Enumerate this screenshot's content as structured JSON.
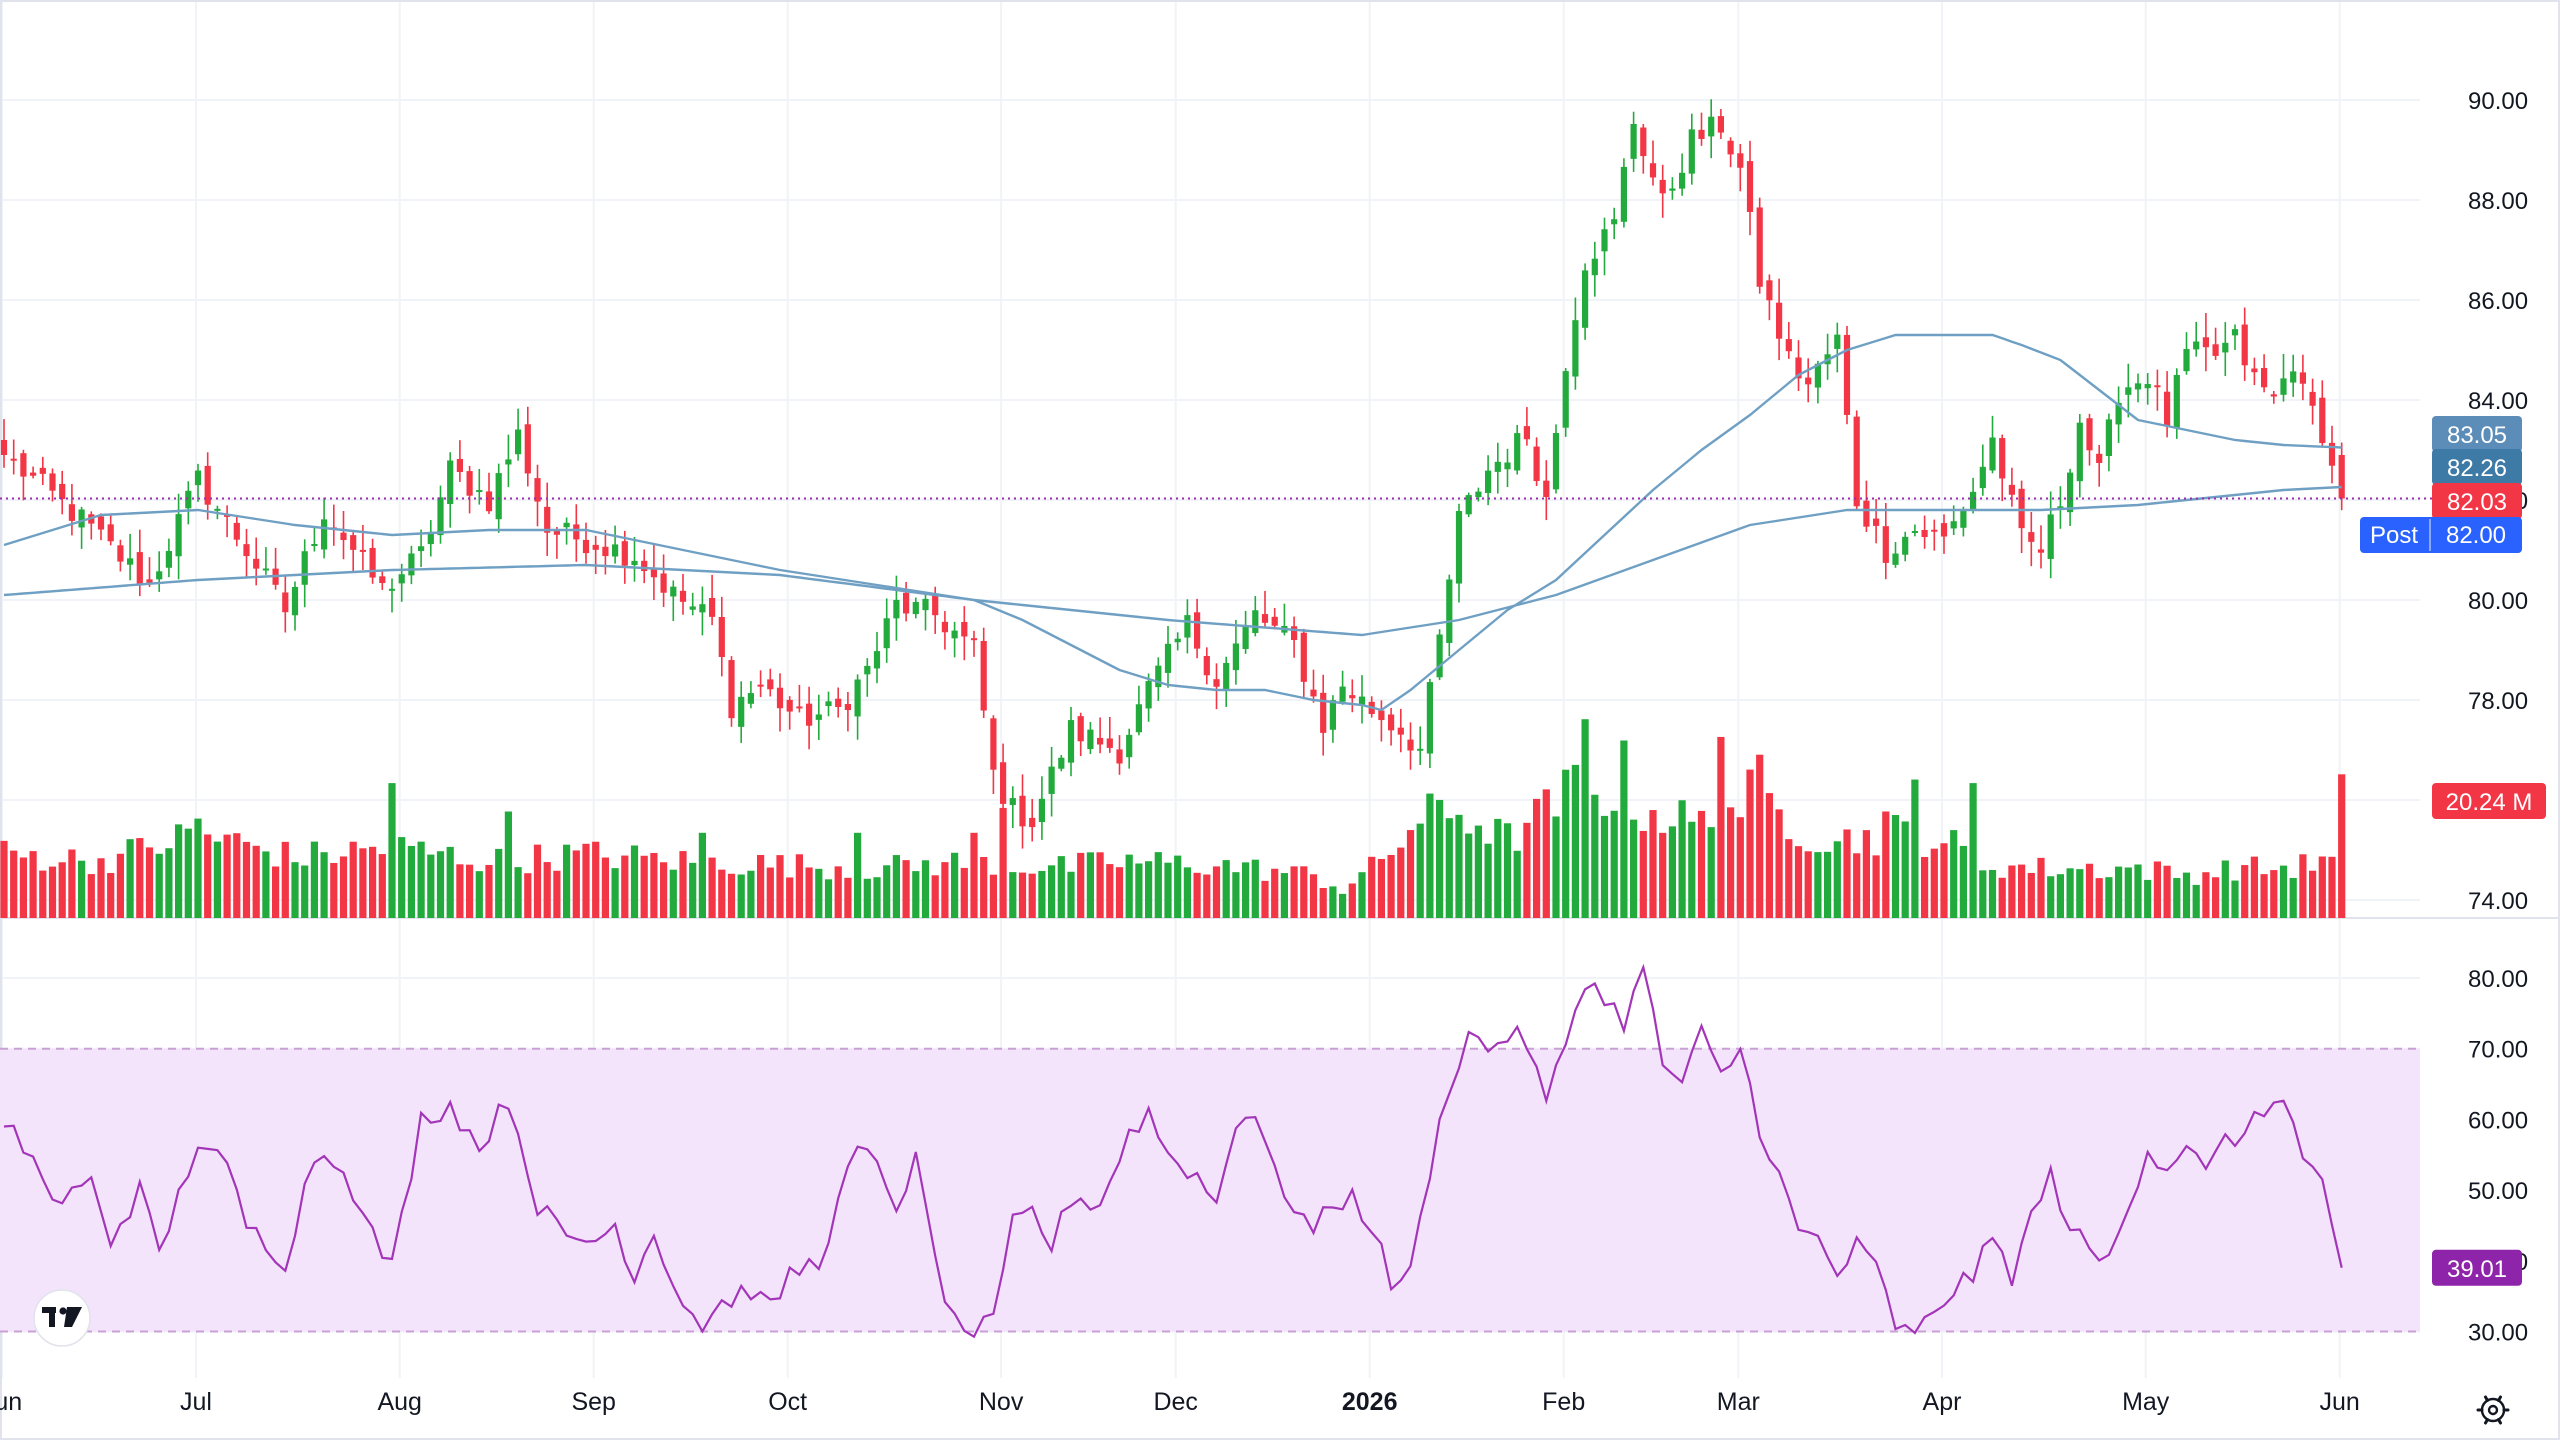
{
  "colors": {
    "up": "#22ab3c",
    "down": "#f23645",
    "ma": "#6fa0c4",
    "rsi": "#a335b8",
    "rsi_band": "#f3e4fc",
    "grid": "#f0f3f7",
    "axis_text": "#131722",
    "ref_line": "#9c27b0",
    "badge_ma50": "#5b8db8",
    "badge_ma200": "#3e7aa6",
    "badge_last": "#f23645",
    "badge_post": "#2962ff",
    "badge_rsi": "#8e24aa"
  },
  "price_axis": {
    "ticks": [
      "90.00",
      "88.00",
      "86.00",
      "84.00",
      "82.00",
      "80.00",
      "78.00",
      "76.00",
      "74.00"
    ],
    "ylim": [
      73.8,
      91.3
    ]
  },
  "rsi_axis": {
    "ticks": [
      "80.00",
      "70.00",
      "60.00",
      "50.00",
      "40.00",
      "30.00"
    ],
    "ylim": [
      27.5,
      84.5
    ],
    "band": [
      30,
      70
    ]
  },
  "time_axis": {
    "labels": [
      {
        "text": "Jun",
        "idx": 0,
        "bold": false
      },
      {
        "text": "Jul",
        "idx": 20,
        "bold": false
      },
      {
        "text": "Aug",
        "idx": 41,
        "bold": false
      },
      {
        "text": "Sep",
        "idx": 61,
        "bold": false
      },
      {
        "text": "Oct",
        "idx": 81,
        "bold": false
      },
      {
        "text": "Nov",
        "idx": 103,
        "bold": false
      },
      {
        "text": "Dec",
        "idx": 121,
        "bold": false
      },
      {
        "text": "2026",
        "idx": 141,
        "bold": true
      },
      {
        "text": "Feb",
        "idx": 161,
        "bold": false
      },
      {
        "text": "Mar",
        "idx": 179,
        "bold": false
      },
      {
        "text": "Apr",
        "idx": 200,
        "bold": false
      },
      {
        "text": "May",
        "idx": 221,
        "bold": false
      },
      {
        "text": "Jun",
        "idx": 241,
        "bold": false
      }
    ]
  },
  "badges": {
    "ma50": "83.05",
    "ma200": "82.26",
    "last": "82.03",
    "post_label": "Post",
    "post_value": "82.00",
    "volume": "20.24 M",
    "rsi": "39.01"
  },
  "chart_data": [
    {
      "type": "candlestick",
      "title": "",
      "anchors_close": [
        [
          0,
          82.9
        ],
        [
          8,
          81.6
        ],
        [
          15,
          80.3
        ],
        [
          20,
          82.4
        ],
        [
          25,
          81.0
        ],
        [
          29,
          79.8
        ],
        [
          33,
          81.8
        ],
        [
          39,
          80.2
        ],
        [
          43,
          80.9
        ],
        [
          46,
          82.6
        ],
        [
          50,
          82.0
        ],
        [
          53,
          83.3
        ],
        [
          56,
          81.4
        ],
        [
          60,
          81.2
        ],
        [
          65,
          80.9
        ],
        [
          69,
          80.1
        ],
        [
          73,
          79.6
        ],
        [
          75,
          77.9
        ],
        [
          78,
          78.3
        ],
        [
          82,
          77.6
        ],
        [
          86,
          77.8
        ],
        [
          89,
          78.6
        ],
        [
          92,
          79.9
        ],
        [
          96,
          79.7
        ],
        [
          100,
          79.0
        ],
        [
          102,
          76.5
        ],
        [
          104,
          75.8
        ],
        [
          106,
          75.6
        ],
        [
          110,
          77.4
        ],
        [
          115,
          77.0
        ],
        [
          118,
          78.2
        ],
        [
          122,
          79.5
        ],
        [
          125,
          78.4
        ],
        [
          129,
          79.7
        ],
        [
          133,
          79.1
        ],
        [
          136,
          77.5
        ],
        [
          138,
          78.3
        ],
        [
          141,
          77.8
        ],
        [
          144,
          77.4
        ],
        [
          146,
          77.0
        ],
        [
          148,
          79.2
        ],
        [
          150,
          81.6
        ],
        [
          153,
          82.6
        ],
        [
          157,
          83.3
        ],
        [
          159,
          82.0
        ],
        [
          161,
          84.8
        ],
        [
          163,
          86.8
        ],
        [
          166,
          87.5
        ],
        [
          168,
          89.6
        ],
        [
          171,
          87.9
        ],
        [
          174,
          89.2
        ],
        [
          177,
          89.5
        ],
        [
          179,
          88.6
        ],
        [
          181,
          86.4
        ],
        [
          184,
          84.8
        ],
        [
          186,
          84.3
        ],
        [
          189,
          85.2
        ],
        [
          191,
          82.0
        ],
        [
          194,
          81.0
        ],
        [
          197,
          81.4
        ],
        [
          200,
          81.2
        ],
        [
          203,
          82.2
        ],
        [
          205,
          83.2
        ],
        [
          208,
          81.2
        ],
        [
          210,
          81.0
        ],
        [
          212,
          82.0
        ],
        [
          214,
          83.6
        ],
        [
          216,
          82.5
        ],
        [
          218,
          84.2
        ],
        [
          221,
          84.5
        ],
        [
          223,
          83.6
        ],
        [
          225,
          84.9
        ],
        [
          228,
          84.9
        ],
        [
          230,
          85.2
        ],
        [
          232,
          84.4
        ],
        [
          234,
          84.0
        ],
        [
          236,
          84.8
        ],
        [
          237,
          84.1
        ],
        [
          239,
          83.4
        ],
        [
          240,
          82.6
        ],
        [
          241,
          82.03
        ]
      ],
      "anchors_volume": [
        [
          0,
          9
        ],
        [
          10,
          8
        ],
        [
          20,
          12
        ],
        [
          30,
          8.5
        ],
        [
          40,
          10
        ],
        [
          50,
          8
        ],
        [
          60,
          9
        ],
        [
          70,
          8
        ],
        [
          80,
          7.5
        ],
        [
          90,
          7
        ],
        [
          100,
          8
        ],
        [
          108,
          7
        ],
        [
          115,
          8
        ],
        [
          125,
          7.5
        ],
        [
          135,
          6
        ],
        [
          138,
          4
        ],
        [
          142,
          8
        ],
        [
          146,
          14
        ],
        [
          150,
          15
        ],
        [
          155,
          11
        ],
        [
          160,
          16
        ],
        [
          163,
          20
        ],
        [
          166,
          17
        ],
        [
          170,
          15
        ],
        [
          175,
          13
        ],
        [
          180,
          17
        ],
        [
          183,
          15
        ],
        [
          186,
          12
        ],
        [
          190,
          11
        ],
        [
          195,
          12
        ],
        [
          200,
          11
        ],
        [
          204,
          7.5
        ],
        [
          210,
          7
        ],
        [
          220,
          7
        ],
        [
          225,
          6
        ],
        [
          230,
          7
        ],
        [
          235,
          7
        ],
        [
          240,
          8
        ],
        [
          241,
          20.24
        ]
      ],
      "spikes_volume": [
        [
          20,
          14
        ],
        [
          40,
          19
        ],
        [
          52,
          15
        ],
        [
          72,
          12
        ],
        [
          88,
          12
        ],
        [
          100,
          12
        ],
        [
          103,
          15.5
        ],
        [
          163,
          28
        ],
        [
          167,
          25
        ],
        [
          177,
          25.5
        ],
        [
          181,
          23
        ],
        [
          194,
          15
        ],
        [
          197,
          19.5
        ],
        [
          203,
          19
        ],
        [
          241,
          20.24
        ]
      ],
      "ma50": [
        [
          0,
          81.1
        ],
        [
          10,
          81.7
        ],
        [
          20,
          81.8
        ],
        [
          30,
          81.5
        ],
        [
          40,
          81.3
        ],
        [
          50,
          81.4
        ],
        [
          60,
          81.4
        ],
        [
          70,
          81.0
        ],
        [
          80,
          80.6
        ],
        [
          90,
          80.3
        ],
        [
          100,
          80.0
        ],
        [
          105,
          79.6
        ],
        [
          110,
          79.1
        ],
        [
          115,
          78.6
        ],
        [
          120,
          78.3
        ],
        [
          125,
          78.2
        ],
        [
          130,
          78.2
        ],
        [
          135,
          78.0
        ],
        [
          140,
          77.9
        ],
        [
          142,
          77.8
        ],
        [
          145,
          78.2
        ],
        [
          150,
          79.0
        ],
        [
          155,
          79.8
        ],
        [
          160,
          80.4
        ],
        [
          165,
          81.3
        ],
        [
          170,
          82.2
        ],
        [
          175,
          83.0
        ],
        [
          180,
          83.7
        ],
        [
          185,
          84.5
        ],
        [
          190,
          85.0
        ],
        [
          195,
          85.3
        ],
        [
          200,
          85.3
        ],
        [
          205,
          85.3
        ],
        [
          208,
          85.1
        ],
        [
          212,
          84.8
        ],
        [
          216,
          84.2
        ],
        [
          220,
          83.6
        ],
        [
          225,
          83.4
        ],
        [
          230,
          83.2
        ],
        [
          235,
          83.1
        ],
        [
          241,
          83.05
        ]
      ],
      "ma200": [
        [
          0,
          80.1
        ],
        [
          20,
          80.4
        ],
        [
          40,
          80.6
        ],
        [
          60,
          80.7
        ],
        [
          80,
          80.5
        ],
        [
          100,
          80.0
        ],
        [
          120,
          79.6
        ],
        [
          140,
          79.3
        ],
        [
          150,
          79.6
        ],
        [
          160,
          80.1
        ],
        [
          170,
          80.8
        ],
        [
          180,
          81.5
        ],
        [
          190,
          81.8
        ],
        [
          200,
          81.8
        ],
        [
          210,
          81.8
        ],
        [
          220,
          81.9
        ],
        [
          230,
          82.1
        ],
        [
          235,
          82.2
        ],
        [
          241,
          82.26
        ]
      ]
    },
    {
      "type": "line",
      "title": "",
      "anchors": [
        [
          0,
          59
        ],
        [
          3,
          55
        ],
        [
          5,
          48
        ],
        [
          9,
          51
        ],
        [
          11,
          43
        ],
        [
          14,
          50
        ],
        [
          16,
          41
        ],
        [
          20,
          57
        ],
        [
          23,
          53
        ],
        [
          25,
          45
        ],
        [
          29,
          40
        ],
        [
          32,
          55
        ],
        [
          35,
          54
        ],
        [
          37,
          46
        ],
        [
          40,
          39
        ],
        [
          43,
          60
        ],
        [
          46,
          62
        ],
        [
          49,
          56
        ],
        [
          52,
          63
        ],
        [
          55,
          48
        ],
        [
          58,
          43
        ],
        [
          61,
          43
        ],
        [
          63,
          45
        ],
        [
          65,
          38
        ],
        [
          67,
          44
        ],
        [
          70,
          34
        ],
        [
          72,
          31
        ],
        [
          74,
          34
        ],
        [
          77,
          36
        ],
        [
          79,
          33
        ],
        [
          81,
          38
        ],
        [
          84,
          40
        ],
        [
          86,
          48
        ],
        [
          88,
          56
        ],
        [
          90,
          53
        ],
        [
          92,
          48
        ],
        [
          94,
          54
        ],
        [
          96,
          40
        ],
        [
          98,
          31
        ],
        [
          100,
          30
        ],
        [
          102,
          31
        ],
        [
          104,
          45
        ],
        [
          106,
          47
        ],
        [
          108,
          42
        ],
        [
          110,
          49
        ],
        [
          113,
          48
        ],
        [
          116,
          58
        ],
        [
          118,
          61
        ],
        [
          120,
          55
        ],
        [
          123,
          52
        ],
        [
          125,
          48
        ],
        [
          127,
          60
        ],
        [
          129,
          61
        ],
        [
          131,
          52
        ],
        [
          133,
          48
        ],
        [
          135,
          44
        ],
        [
          137,
          48
        ],
        [
          139,
          49
        ],
        [
          141,
          45
        ],
        [
          143,
          37
        ],
        [
          145,
          38
        ],
        [
          147,
          53
        ],
        [
          149,
          65
        ],
        [
          151,
          72
        ],
        [
          153,
          70
        ],
        [
          155,
          72
        ],
        [
          157,
          71
        ],
        [
          159,
          62
        ],
        [
          161,
          71
        ],
        [
          163,
          80
        ],
        [
          165,
          77
        ],
        [
          167,
          74
        ],
        [
          169,
          81
        ],
        [
          171,
          68
        ],
        [
          173,
          65
        ],
        [
          175,
          72
        ],
        [
          177,
          66
        ],
        [
          179,
          70
        ],
        [
          181,
          59
        ],
        [
          183,
          52
        ],
        [
          185,
          44
        ],
        [
          187,
          43
        ],
        [
          189,
          38
        ],
        [
          191,
          42
        ],
        [
          193,
          39
        ],
        [
          195,
          31
        ],
        [
          197,
          29
        ],
        [
          199,
          33
        ],
        [
          201,
          36
        ],
        [
          203,
          38
        ],
        [
          205,
          43
        ],
        [
          207,
          38
        ],
        [
          209,
          46
        ],
        [
          211,
          52
        ],
        [
          213,
          45
        ],
        [
          215,
          41
        ],
        [
          217,
          40
        ],
        [
          219,
          48
        ],
        [
          221,
          56
        ],
        [
          223,
          53
        ],
        [
          225,
          57
        ],
        [
          227,
          52
        ],
        [
          229,
          57
        ],
        [
          231,
          58
        ],
        [
          233,
          61
        ],
        [
          235,
          64
        ],
        [
          237,
          54
        ],
        [
          239,
          52
        ],
        [
          240,
          44
        ],
        [
          241,
          39.01
        ]
      ],
      "band": [
        30,
        70
      ]
    }
  ]
}
